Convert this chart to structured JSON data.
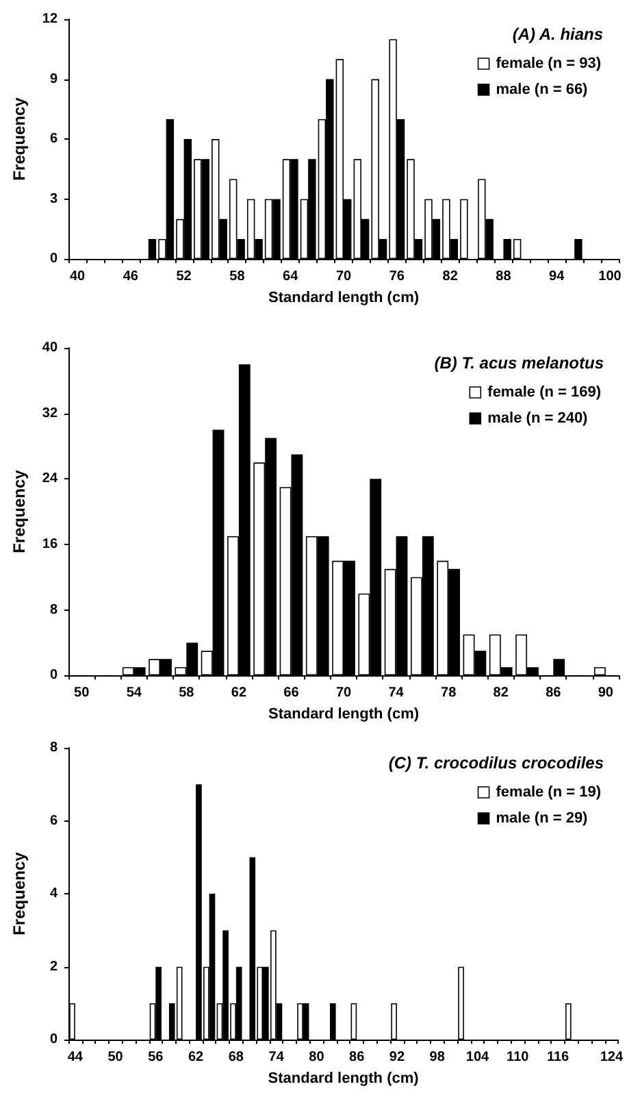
{
  "chart_data": [
    {
      "type": "bar",
      "title": "(A) A. hians",
      "xlabel": "Standard length (cm)",
      "ylabel": "Frequency",
      "categories": [
        "40",
        null,
        null,
        "46",
        null,
        null,
        "52",
        null,
        null,
        "58",
        null,
        null,
        "64",
        null,
        null,
        "70",
        null,
        null,
        "76",
        null,
        null,
        "82",
        null,
        null,
        "88",
        null,
        null,
        "94",
        null,
        null,
        "100"
      ],
      "series": [
        {
          "name": "female (n = 93)",
          "color": "#ffffff",
          "values": [
            0,
            0,
            0,
            0,
            0,
            1,
            2,
            5,
            6,
            4,
            3,
            3,
            5,
            3,
            7,
            10,
            5,
            9,
            11,
            5,
            3,
            3,
            3,
            4,
            0,
            1,
            0,
            0,
            0,
            0,
            0
          ]
        },
        {
          "name": "male (n = 66)",
          "color": "#000000",
          "values": [
            0,
            0,
            0,
            0,
            1,
            7,
            6,
            5,
            2,
            1,
            1,
            3,
            5,
            5,
            9,
            3,
            2,
            1,
            7,
            1,
            2,
            1,
            0,
            2,
            1,
            0,
            0,
            0,
            1,
            0,
            0
          ]
        }
      ],
      "ylim": [
        0,
        12
      ],
      "yticks": [
        0,
        3,
        6,
        9,
        12
      ],
      "grid": false,
      "legend": "top right"
    },
    {
      "type": "bar",
      "title": "(B) T. acus melanotus",
      "xlabel": "Standard length (cm)",
      "ylabel": "Frequency",
      "categories": [
        "50",
        null,
        "54",
        null,
        "58",
        null,
        "62",
        null,
        "66",
        null,
        "70",
        null,
        "74",
        null,
        "78",
        null,
        "82",
        null,
        "86",
        null,
        "90"
      ],
      "series": [
        {
          "name": "female (n = 169)",
          "color": "#ffffff",
          "values": [
            0,
            0,
            1,
            2,
            1,
            3,
            17,
            26,
            23,
            17,
            14,
            10,
            13,
            12,
            14,
            5,
            5,
            5,
            0,
            0,
            1
          ]
        },
        {
          "name": "male (n = 240)",
          "color": "#000000",
          "values": [
            0,
            0,
            1,
            2,
            4,
            30,
            38,
            29,
            27,
            17,
            14,
            24,
            17,
            17,
            13,
            3,
            1,
            1,
            2,
            0,
            0
          ]
        }
      ],
      "ylim": [
        0,
        40
      ],
      "yticks": [
        0,
        8,
        16,
        24,
        32,
        40
      ],
      "grid": false,
      "legend": "top right"
    },
    {
      "type": "bar",
      "title": "(C) T. crocodilus crocodiles",
      "xlabel": "Standard length (cm)",
      "ylabel": "Frequency",
      "categories": [
        "44",
        null,
        null,
        "50",
        null,
        null,
        "56",
        null,
        null,
        "62",
        null,
        null,
        "68",
        null,
        null,
        "74",
        null,
        null,
        "80",
        null,
        null,
        "86",
        null,
        null,
        "92",
        null,
        null,
        "98",
        null,
        null,
        "104",
        null,
        null,
        "110",
        null,
        null,
        "116",
        null,
        null,
        null,
        "124"
      ],
      "series": [
        {
          "name": "female (n = 19)",
          "color": "#ffffff",
          "values": [
            1,
            0,
            0,
            0,
            0,
            0,
            1,
            0,
            2,
            0,
            2,
            1,
            1,
            0,
            2,
            3,
            0,
            1,
            0,
            0,
            0,
            1,
            0,
            0,
            1,
            0,
            0,
            0,
            0,
            2,
            0,
            0,
            0,
            0,
            0,
            0,
            0,
            1,
            0,
            0,
            0
          ]
        },
        {
          "name": "male (n = 29)",
          "color": "#000000",
          "values": [
            0,
            0,
            0,
            0,
            0,
            0,
            2,
            1,
            0,
            7,
            4,
            3,
            2,
            5,
            2,
            1,
            0,
            1,
            0,
            1,
            0,
            0,
            0,
            0,
            0,
            0,
            0,
            0,
            0,
            0,
            0,
            0,
            0,
            0,
            0,
            0,
            0,
            0,
            0,
            0,
            0
          ]
        }
      ],
      "ylim": [
        0,
        8
      ],
      "yticks": [
        0,
        2,
        4,
        6,
        8
      ],
      "grid": false,
      "legend": "top right"
    }
  ]
}
